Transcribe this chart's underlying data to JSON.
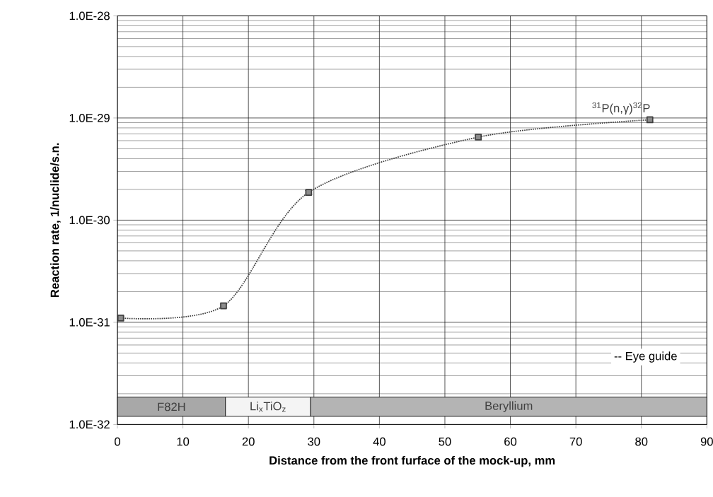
{
  "chart_data": {
    "type": "line",
    "xlabel": "Distance from the front furface of the mock-up, mm",
    "ylabel": "Reaction rate, 1/nuclide/s.n.",
    "x": [
      0.5,
      16.2,
      29.2,
      55.1,
      81.3
    ],
    "series": [
      {
        "name": "$^{31}$P(n,γ)$^{32}$P",
        "color": "#404040",
        "values": [
          1.1e-31,
          1.45e-31,
          1.87e-30,
          6.5e-30,
          9.6e-30
        ],
        "errors": [
          5e-33,
          6e-33,
          8e-32,
          3e-31,
          4e-31
        ]
      }
    ],
    "log": "y",
    "xlim": [
      0,
      90
    ],
    "xticks": [
      0,
      10,
      20,
      30,
      40,
      50,
      60,
      70,
      80,
      90
    ],
    "ylim": [
      1e-32,
      1e-28
    ],
    "yticks": [
      {
        "value": 1e-32,
        "label": "1.0E-32"
      },
      {
        "value": 1e-31,
        "label": "1.0E-31"
      },
      {
        "value": 1e-30,
        "label": "1.0E-30"
      },
      {
        "value": 1e-29,
        "label": "1.0E-29"
      },
      {
        "value": 1e-28,
        "label": "1.0E-28"
      }
    ],
    "grid": true,
    "marker": "square",
    "line_style": "dotted",
    "bands": [
      {
        "axis": "x",
        "from": 0,
        "to": 16.5,
        "label": "F82H",
        "color": "#a8a8a8"
      },
      {
        "axis": "x",
        "from": 16.5,
        "to": 29.5,
        "label": "Li$_{x}$TiO$_{z}$",
        "color": "#f4f4f4"
      },
      {
        "axis": "x",
        "from": 29.5,
        "to": 90,
        "label": "Beryllium",
        "color": "#b4b4b4"
      }
    ],
    "annotations": [
      "-- Eye guide"
    ]
  }
}
